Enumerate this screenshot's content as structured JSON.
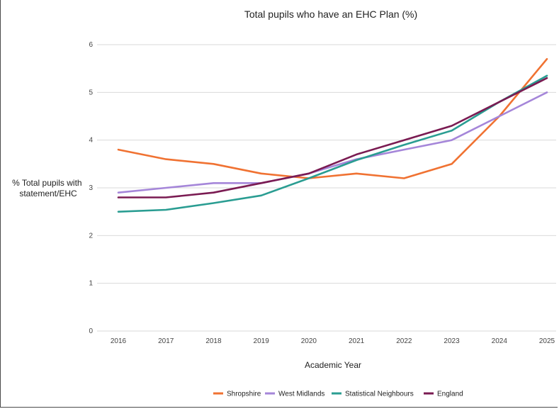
{
  "chart_data": {
    "type": "line",
    "title": "Total pupils who have an EHC Plan (%)",
    "xlabel": "Academic Year",
    "ylabel": [
      "% Total pupils with",
      "statement/EHC"
    ],
    "x": [
      "2016",
      "2017",
      "2018",
      "2019",
      "2020",
      "2021",
      "2022",
      "2023",
      "2024",
      "2025"
    ],
    "ylim": [
      0,
      6
    ],
    "yticks": [
      "0",
      "1",
      "2",
      "3",
      "4",
      "5",
      "6"
    ],
    "grid": "horizontal",
    "legend_position": "bottom",
    "series": [
      {
        "name": "Shropshire",
        "color": "#f07232",
        "values": [
          3.8,
          3.6,
          3.5,
          3.3,
          3.2,
          3.3,
          3.2,
          3.5,
          4.5,
          5.7
        ]
      },
      {
        "name": "West Midlands",
        "color": "#a586d9",
        "values": [
          2.9,
          3.0,
          3.1,
          3.1,
          3.3,
          3.6,
          3.8,
          4.0,
          4.5,
          5.0
        ]
      },
      {
        "name": "Statistical Neighbours",
        "color": "#2a9d92",
        "values": [
          2.5,
          2.54,
          2.68,
          2.84,
          3.2,
          3.58,
          3.9,
          4.2,
          4.8,
          5.35
        ]
      },
      {
        "name": "England",
        "color": "#7a1b52",
        "values": [
          2.8,
          2.8,
          2.9,
          3.1,
          3.3,
          3.7,
          4.0,
          4.3,
          4.8,
          5.3
        ]
      }
    ]
  }
}
